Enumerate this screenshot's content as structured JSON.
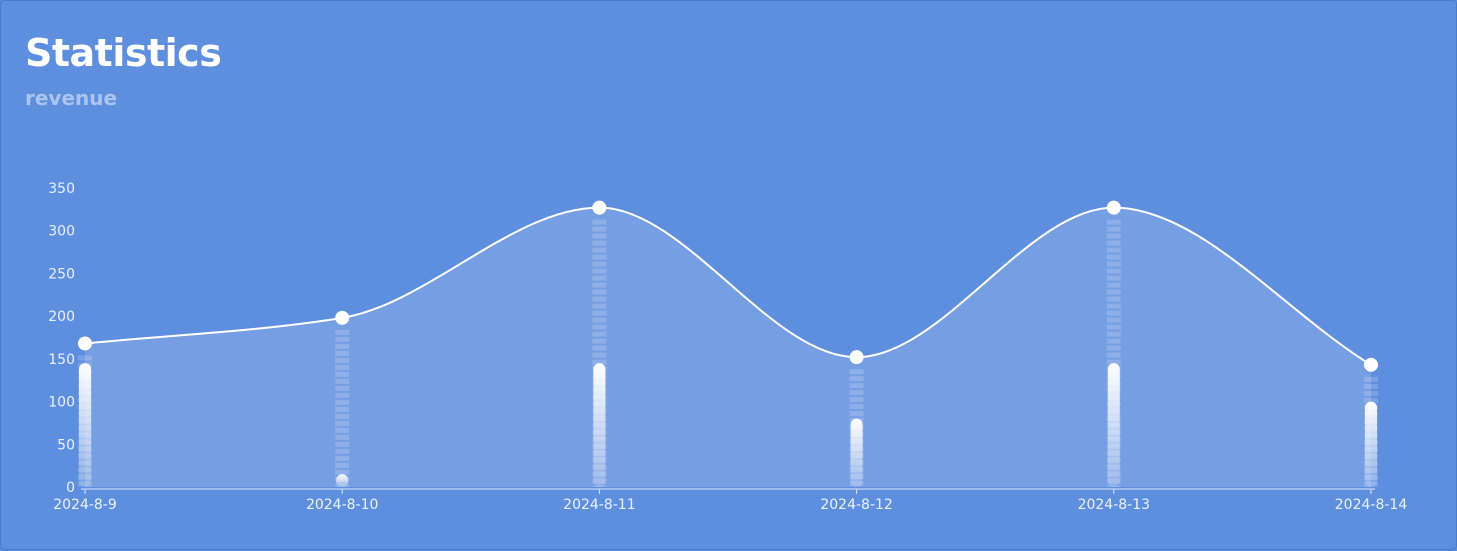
{
  "card": {
    "title": "Statistics",
    "subtitle": "revenue"
  },
  "colors": {
    "background": "#5e8fde",
    "area_fill": "#779fe3",
    "line": "#ffffff",
    "marker": "#ffffff",
    "tick_text": "#eaf1ff"
  },
  "chart_data": {
    "type": "line",
    "title": "",
    "xlabel": "",
    "ylabel": "",
    "categories": [
      "2024-8-9",
      "2024-8-10",
      "2024-8-11",
      "2024-8-12",
      "2024-8-13",
      "2024-8-14"
    ],
    "series": [
      {
        "type": "area",
        "values": [
          168,
          198,
          327,
          152,
          327,
          143
        ]
      },
      {
        "type": "bar",
        "values": [
          145,
          15,
          145,
          80,
          145,
          100
        ]
      }
    ],
    "ylim": [
      0,
      350
    ],
    "yticks": [
      0,
      50,
      100,
      150,
      200,
      250,
      300,
      350
    ],
    "grid": false,
    "legend": "none"
  }
}
